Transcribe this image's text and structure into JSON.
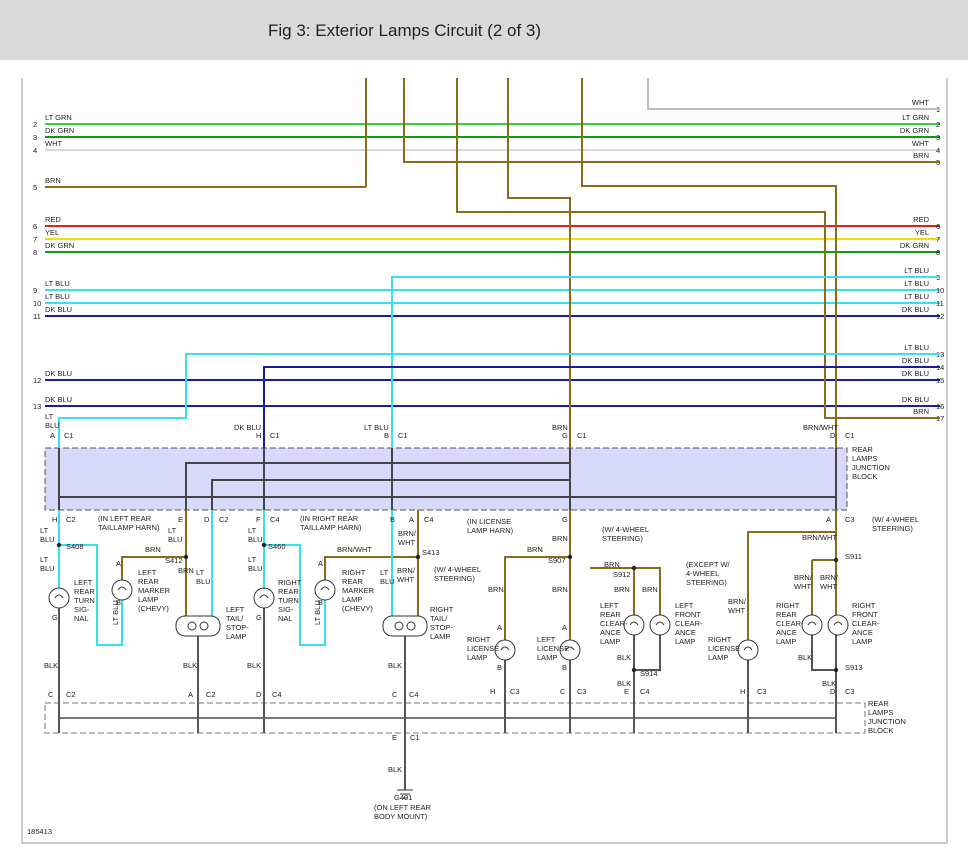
{
  "header": {
    "title": "Fig 3: Exterior Lamps Circuit (2 of 3)"
  },
  "figure_id": "185413",
  "left_wires": [
    {
      "pin": 2,
      "label": "LT GRN"
    },
    {
      "pin": 3,
      "label": "DK GRN"
    },
    {
      "pin": 4,
      "label": "WHT"
    },
    {
      "pin": 5,
      "label": "BRN"
    },
    {
      "pin": 6,
      "label": "RED"
    },
    {
      "pin": 7,
      "label": "YEL"
    },
    {
      "pin": 8,
      "label": "DK GRN"
    },
    {
      "pin": 9,
      "label": "LT BLU"
    },
    {
      "pin": 10,
      "label": "LT BLU"
    },
    {
      "pin": 11,
      "label": "DK BLU"
    },
    {
      "pin": 12,
      "label": "DK BLU"
    },
    {
      "pin": 13,
      "label": "DK BLU"
    }
  ],
  "right_wires": [
    {
      "pin": 1,
      "label": "WHT"
    },
    {
      "pin": 2,
      "label": "LT GRN"
    },
    {
      "pin": 3,
      "label": "DK GRN"
    },
    {
      "pin": 4,
      "label": "WHT"
    },
    {
      "pin": 5,
      "label": "BRN"
    },
    {
      "pin": 6,
      "label": "RED"
    },
    {
      "pin": 7,
      "label": "YEL"
    },
    {
      "pin": 8,
      "label": "DK GRN"
    },
    {
      "pin": 9,
      "label": "LT BLU"
    },
    {
      "pin": 10,
      "label": "LT BLU"
    },
    {
      "pin": 11,
      "label": "LT BLU"
    },
    {
      "pin": 12,
      "label": "DK BLU"
    },
    {
      "pin": 13,
      "label": "LT BLU"
    },
    {
      "pin": 14,
      "label": "DK BLU"
    },
    {
      "pin": 15,
      "label": "DK BLU"
    },
    {
      "pin": 16,
      "label": "DK BLU"
    },
    {
      "pin": 17,
      "label": "BRN"
    }
  ],
  "labels": [
    [
      "LT",
      "BLU"
    ],
    "A",
    "C1",
    "DK BLU",
    "H",
    "C1",
    "LT BLU",
    "B",
    "C1",
    "BRN",
    "G",
    "C1",
    "BRN/WHT",
    "D",
    "C1",
    [
      "REAR",
      "LAMPS",
      "JUNCTION",
      "BLOCK"
    ],
    "H",
    "C2",
    [
      "LT",
      "BLU"
    ],
    "S408",
    [
      "LT",
      "BLU"
    ],
    [
      "LEFT",
      "REAR",
      "TURN",
      "SIG-",
      "NAL"
    ],
    "G",
    "BLK",
    "C",
    "C2",
    [
      "(IN LEFT REAR",
      "TAILLAMP HARN)"
    ],
    "BRN",
    "S412",
    "E",
    [
      "LT",
      "BLU"
    ],
    "D",
    "C2",
    "A",
    "B",
    [
      "LEFT",
      "REAR",
      "MARKER",
      "LAMP",
      "(CHEVY)"
    ],
    "LT BLU",
    "BRN",
    [
      "LT",
      "BLU"
    ],
    [
      "LEFT",
      "TAIL/",
      "STOP-",
      "LAMP"
    ],
    "BLK",
    "A",
    "C2",
    "F",
    "C4",
    [
      "LT",
      "BLU"
    ],
    "S460",
    [
      "LT",
      "BLU"
    ],
    [
      "RIGHT",
      "REAR",
      "TURN",
      "SIG-",
      "NAL"
    ],
    "G",
    "BLK",
    "D",
    "C4",
    [
      "(IN RIGHT REAR",
      "TAILLAMP HARN)"
    ],
    "BRN/WHT",
    "S413",
    "A",
    "B",
    [
      "RIGHT",
      "REAR",
      "MARKER",
      "LAMP",
      "(CHEVY)"
    ],
    "LT BLU",
    [
      "LT",
      "BLU"
    ],
    [
      "BRN/",
      "WHT"
    ],
    [
      "BRN/",
      "WHT"
    ],
    "B",
    "A",
    "C4",
    [
      "RIGHT",
      "TAIL/",
      "STOP-",
      "LAMP"
    ],
    "BLK",
    "C",
    "C4",
    [
      "(IN LICENSE",
      "LAMP HARN)"
    ],
    "G",
    "BRN",
    "S907",
    "BRN",
    "BRN",
    [
      "(W/ 4-WHEEL",
      "STEERING)"
    ],
    "BRN",
    "S912",
    [
      "(W/ 4-WHEEL",
      "STEERING)"
    ],
    "BRN",
    [
      "RIGHT",
      "LICENSE",
      "LAMP"
    ],
    "A",
    "B",
    [
      "LEFT",
      "LICENSE",
      "LAMP"
    ],
    "A",
    "B",
    "BRN",
    "BRN",
    [
      "LEFT",
      "REAR",
      "CLEAR-",
      "ANCE",
      "LAMP"
    ],
    [
      "LEFT",
      "FRONT",
      "CLEAR-",
      "ANCE",
      "LAMP"
    ],
    "BLK",
    "S914",
    "BLK",
    "H",
    "C3",
    "C",
    "C3",
    "E",
    "C4",
    "A",
    "C3",
    [
      "(W/ 4-WHEEL",
      "STEERING)"
    ],
    "BRN/WHT",
    "S911",
    [
      "(EXCEPT W/",
      "4-WHEEL",
      "STEERING)"
    ],
    [
      "BRN/",
      "WHT"
    ],
    [
      "RIGHT",
      "LICENSE",
      "LAMP"
    ],
    [
      "BRN/",
      "WHT"
    ],
    [
      "BRN/",
      "WHT"
    ],
    [
      "RIGHT",
      "REAR",
      "CLEAR-",
      "ANCE",
      "LAMP"
    ],
    [
      "RIGHT",
      "FRONT",
      "CLEAR-",
      "ANCE",
      "LAMP"
    ],
    "BLK",
    "S913",
    "BLK",
    "H",
    "C3",
    "D",
    "C3",
    [
      "REAR",
      "LAMPS",
      "JUNCTION",
      "BLOCK"
    ],
    "E",
    "C1",
    "BLK",
    "G401",
    [
      "(ON LEFT REAR",
      "BODY MOUNT)"
    ]
  ]
}
